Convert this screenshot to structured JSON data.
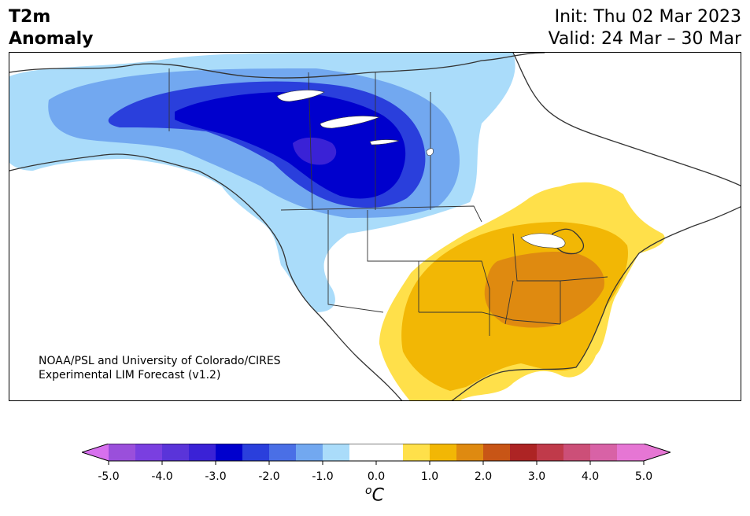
{
  "title": {
    "line1": "T2m",
    "line2": "Anomaly",
    "init": "Init: Thu 02 Mar 2023",
    "valid": "Valid: 24 Mar – 30 Mar"
  },
  "credit": {
    "line1": "NOAA/PSL and University of Colorado/CIRES",
    "line2": "Experimental LIM Forecast (v1.2)"
  },
  "colorbar": {
    "unit": "C",
    "unit_prefix": "o",
    "tick_labels": [
      "-5.0",
      "-4.0",
      "-3.0",
      "-2.0",
      "-1.0",
      "0.0",
      "1.0",
      "2.0",
      "3.0",
      "4.0",
      "5.0"
    ],
    "bins": [
      {
        "from": -5.0,
        "to": -4.5,
        "color": "#9a4fdb"
      },
      {
        "from": -4.5,
        "to": -4.0,
        "color": "#7a3fe0"
      },
      {
        "from": -4.0,
        "to": -3.5,
        "color": "#5a34d9"
      },
      {
        "from": -3.5,
        "to": -3.0,
        "color": "#3a22d6"
      },
      {
        "from": -3.0,
        "to": -2.5,
        "color": "#0000cd"
      },
      {
        "from": -2.5,
        "to": -2.0,
        "color": "#2a3fdc"
      },
      {
        "from": -2.0,
        "to": -1.5,
        "color": "#4a6fe6"
      },
      {
        "from": -1.5,
        "to": -1.0,
        "color": "#72a8f0"
      },
      {
        "from": -1.0,
        "to": -0.5,
        "color": "#aadcfa"
      },
      {
        "from": -0.5,
        "to": 0.5,
        "color": "#ffffff"
      },
      {
        "from": 0.5,
        "to": 1.0,
        "color": "#ffe04a"
      },
      {
        "from": 1.0,
        "to": 1.5,
        "color": "#f2b705"
      },
      {
        "from": 1.5,
        "to": 2.0,
        "color": "#df8a10"
      },
      {
        "from": 2.0,
        "to": 2.5,
        "color": "#c85516"
      },
      {
        "from": 2.5,
        "to": 3.0,
        "color": "#ad2424"
      },
      {
        "from": 3.0,
        "to": 3.5,
        "color": "#c03a4a"
      },
      {
        "from": 3.5,
        "to": 4.0,
        "color": "#cc4f78"
      },
      {
        "from": 4.0,
        "to": 4.5,
        "color": "#d862a6"
      },
      {
        "from": 4.5,
        "to": 5.0,
        "color": "#e676d4"
      }
    ],
    "under_color": "#d770ee",
    "over_color": "#e676d4",
    "range": [
      -5.0,
      5.0
    ]
  },
  "map": {
    "region": "North America",
    "colors": {
      "cold_light": "#aadcfa",
      "cold_med": "#72a8f0",
      "cold_strong": "#2a3fdc",
      "cold_core": "#0000cd",
      "cold_peak": "#3a22d6",
      "warm_light": "#ffe04a",
      "warm_med": "#f2b705",
      "warm_strong": "#df8a10",
      "border": "#333333"
    }
  }
}
